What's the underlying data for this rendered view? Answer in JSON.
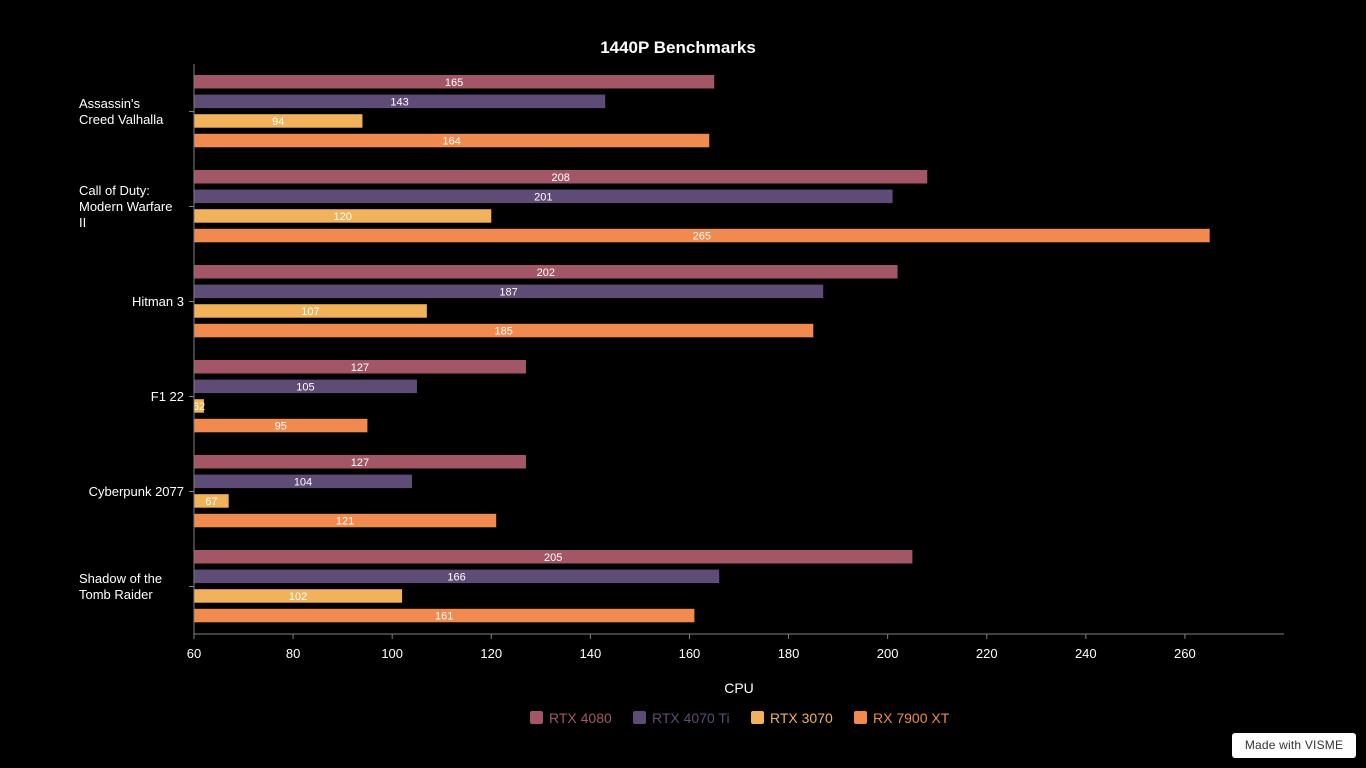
{
  "chart_data": {
    "type": "bar",
    "orientation": "horizontal",
    "title": "1440P Benchmarks",
    "xlabel": "CPU",
    "ylabel": "",
    "xlim": [
      60,
      280
    ],
    "xticks": [
      60,
      80,
      100,
      120,
      140,
      160,
      180,
      200,
      220,
      240,
      260
    ],
    "grid": false,
    "legend_position": "bottom",
    "categories": [
      [
        "Assassin's",
        "Creed Valhalla"
      ],
      [
        "Call of Duty:",
        "Modern Warfare",
        "II"
      ],
      [
        "Hitman 3"
      ],
      [
        "F1 22"
      ],
      [
        "Cyberpunk 2077"
      ],
      [
        "Shadow of the",
        "Tomb Raider"
      ]
    ],
    "series": [
      {
        "name": "RTX 4080",
        "color": "#a35766",
        "values": [
          165,
          208,
          202,
          127,
          127,
          205
        ]
      },
      {
        "name": "RTX 4070 Ti",
        "color": "#5e4b76",
        "values": [
          143,
          201,
          187,
          105,
          104,
          166
        ]
      },
      {
        "name": "RTX 3070",
        "color": "#f2b25c",
        "values": [
          94,
          120,
          107,
          62,
          67,
          102
        ]
      },
      {
        "name": "RX 7900 XT",
        "color": "#f08a4f",
        "values": [
          164,
          265,
          185,
          95,
          121,
          161
        ]
      }
    ]
  },
  "badge": {
    "text": "Made with VISME"
  }
}
